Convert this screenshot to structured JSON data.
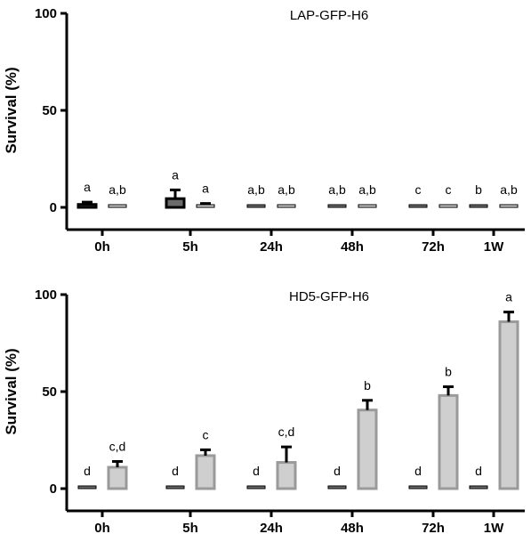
{
  "chart_data": [
    {
      "type": "bar",
      "title": "LAP-GFP-H6",
      "ylabel": "Survival (%)",
      "xlabel": "",
      "ylim": [
        0,
        100
      ],
      "yticks": [
        0,
        50,
        100
      ],
      "categories": [
        "0h",
        "5h",
        "24h",
        "48h",
        "72h",
        "1W"
      ],
      "grid": false,
      "series": [
        {
          "color": "#6b6b6b",
          "values": [
            1.5,
            4.5,
            0.5,
            0.3,
            0.1,
            0.1
          ],
          "errors": [
            1.2,
            4.5,
            0.4,
            0.2,
            0.1,
            0.1
          ],
          "letters": [
            "a",
            "a",
            "a,b",
            "a,b",
            "c",
            "b"
          ]
        },
        {
          "color": "#cfcfcf",
          "values": [
            0.6,
            1.0,
            0.3,
            0.2,
            0.0,
            0.4
          ],
          "errors": [
            0.5,
            1.0,
            0.3,
            0.2,
            0.0,
            0.3
          ],
          "letters": [
            "a,b",
            "a",
            "a,b",
            "a,b",
            "c",
            "a,b"
          ]
        }
      ]
    },
    {
      "type": "bar",
      "title": "HD5-GFP-H6",
      "ylabel": "Survival (%)",
      "xlabel": "",
      "ylim": [
        0,
        100
      ],
      "yticks": [
        0,
        50,
        100
      ],
      "categories": [
        "0h",
        "5h",
        "24h",
        "48h",
        "72h",
        "1W"
      ],
      "grid": false,
      "series": [
        {
          "color": "#6b6b6b",
          "values": [
            0.3,
            0.0,
            0.1,
            0.0,
            0.0,
            0.0
          ],
          "errors": [
            0.3,
            0.0,
            0.1,
            0.0,
            0.0,
            0.0
          ],
          "letters": [
            "d",
            "d",
            "d",
            "d",
            "d",
            "d"
          ]
        },
        {
          "color": "#cfcfcf",
          "values": [
            11,
            17,
            13.5,
            40.5,
            48,
            86
          ],
          "errors": [
            3,
            3,
            8,
            5,
            4.5,
            5
          ],
          "letters": [
            "c,d",
            "c",
            "c,d",
            "b",
            "b",
            "a"
          ]
        }
      ]
    }
  ]
}
